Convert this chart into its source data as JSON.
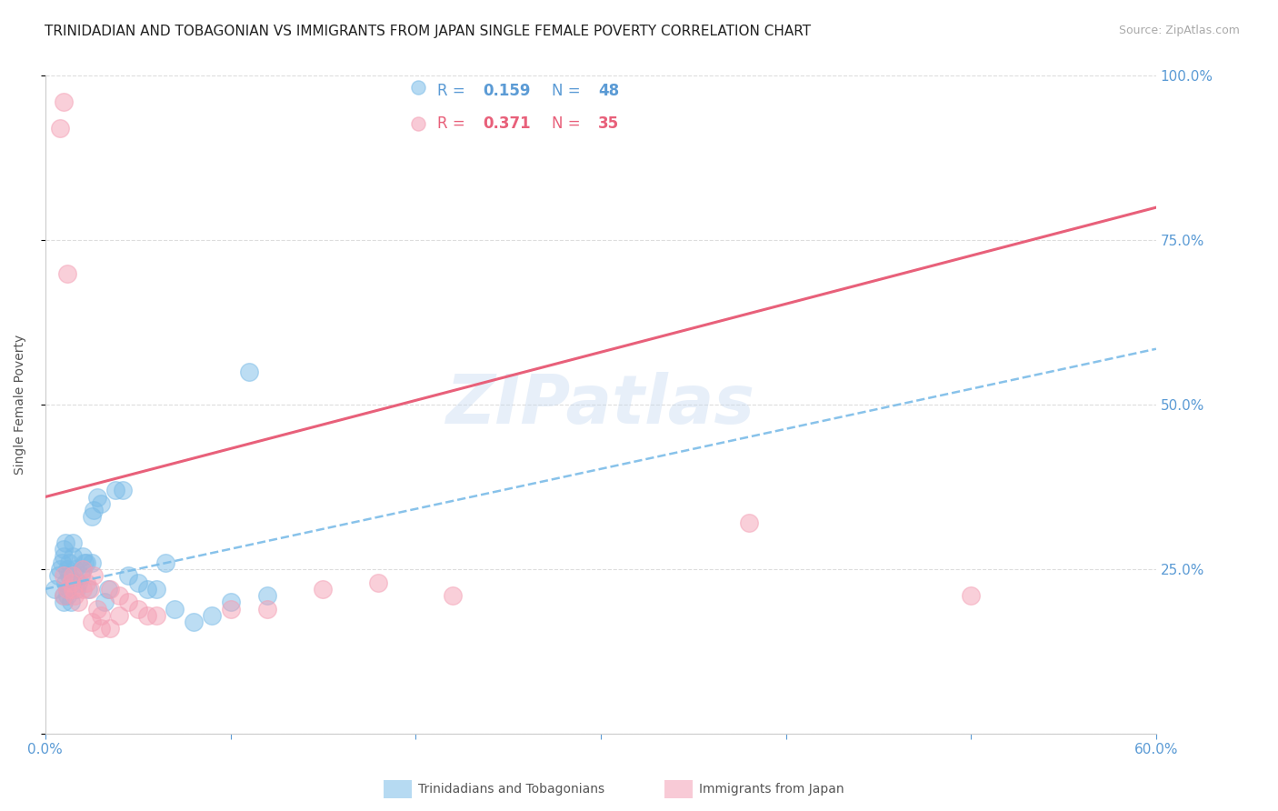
{
  "title": "TRINIDADIAN AND TOBAGONIAN VS IMMIGRANTS FROM JAPAN SINGLE FEMALE POVERTY CORRELATION CHART",
  "source": "Source: ZipAtlas.com",
  "ylabel": "Single Female Poverty",
  "xlim": [
    0.0,
    0.6
  ],
  "ylim": [
    0.0,
    1.0
  ],
  "xticks": [
    0.0,
    0.1,
    0.2,
    0.3,
    0.4,
    0.5,
    0.6
  ],
  "xtick_labels": [
    "0.0%",
    "",
    "",
    "",
    "",
    "",
    "60.0%"
  ],
  "yticks": [
    0.0,
    0.25,
    0.5,
    0.75,
    1.0
  ],
  "ytick_labels": [
    "",
    "25.0%",
    "50.0%",
    "75.0%",
    "100.0%"
  ],
  "blue_color": "#7bbce8",
  "pink_color": "#f4a0b5",
  "blue_R": 0.159,
  "blue_N": 48,
  "pink_R": 0.371,
  "pink_N": 35,
  "watermark": "ZIPatlas",
  "legend_label_blue": "Trinidadians and Tobagonians",
  "legend_label_pink": "Immigrants from Japan",
  "blue_scatter_x": [
    0.005,
    0.007,
    0.008,
    0.009,
    0.01,
    0.01,
    0.01,
    0.011,
    0.011,
    0.012,
    0.012,
    0.013,
    0.013,
    0.014,
    0.015,
    0.015,
    0.016,
    0.017,
    0.018,
    0.019,
    0.02,
    0.021,
    0.022,
    0.023,
    0.025,
    0.026,
    0.028,
    0.03,
    0.032,
    0.034,
    0.038,
    0.042,
    0.045,
    0.05,
    0.055,
    0.06,
    0.065,
    0.07,
    0.08,
    0.09,
    0.1,
    0.11,
    0.12,
    0.01,
    0.012,
    0.015,
    0.02,
    0.025
  ],
  "blue_scatter_y": [
    0.22,
    0.24,
    0.25,
    0.26,
    0.21,
    0.27,
    0.28,
    0.29,
    0.23,
    0.22,
    0.25,
    0.24,
    0.26,
    0.2,
    0.23,
    0.27,
    0.25,
    0.22,
    0.23,
    0.24,
    0.25,
    0.26,
    0.26,
    0.22,
    0.33,
    0.34,
    0.36,
    0.35,
    0.2,
    0.22,
    0.37,
    0.37,
    0.24,
    0.23,
    0.22,
    0.22,
    0.26,
    0.19,
    0.17,
    0.18,
    0.2,
    0.55,
    0.21,
    0.2,
    0.21,
    0.29,
    0.27,
    0.26
  ],
  "pink_scatter_x": [
    0.008,
    0.01,
    0.01,
    0.012,
    0.012,
    0.014,
    0.015,
    0.016,
    0.018,
    0.02,
    0.022,
    0.024,
    0.026,
    0.028,
    0.03,
    0.035,
    0.04,
    0.045,
    0.05,
    0.055,
    0.06,
    0.1,
    0.12,
    0.15,
    0.18,
    0.22,
    0.38,
    0.5,
    0.01,
    0.015,
    0.02,
    0.025,
    0.03,
    0.035,
    0.04
  ],
  "pink_scatter_y": [
    0.92,
    0.96,
    0.24,
    0.22,
    0.7,
    0.23,
    0.22,
    0.21,
    0.2,
    0.25,
    0.23,
    0.22,
    0.24,
    0.19,
    0.18,
    0.22,
    0.21,
    0.2,
    0.19,
    0.18,
    0.18,
    0.19,
    0.19,
    0.22,
    0.23,
    0.21,
    0.32,
    0.21,
    0.21,
    0.24,
    0.22,
    0.17,
    0.16,
    0.16,
    0.18
  ],
  "blue_line_x": [
    0.0,
    0.6
  ],
  "blue_line_y": [
    0.22,
    0.585
  ],
  "pink_line_x": [
    0.0,
    0.6
  ],
  "pink_line_y": [
    0.36,
    0.8
  ],
  "title_fontsize": 11,
  "tick_fontsize": 11,
  "source_fontsize": 9,
  "background_color": "#ffffff",
  "grid_color": "#dddddd",
  "axis_color": "#cccccc",
  "tick_color": "#5b9bd5",
  "pink_line_color": "#e8607a",
  "blue_text_color": "#5b9bd5",
  "pink_text_color": "#e8607a"
}
